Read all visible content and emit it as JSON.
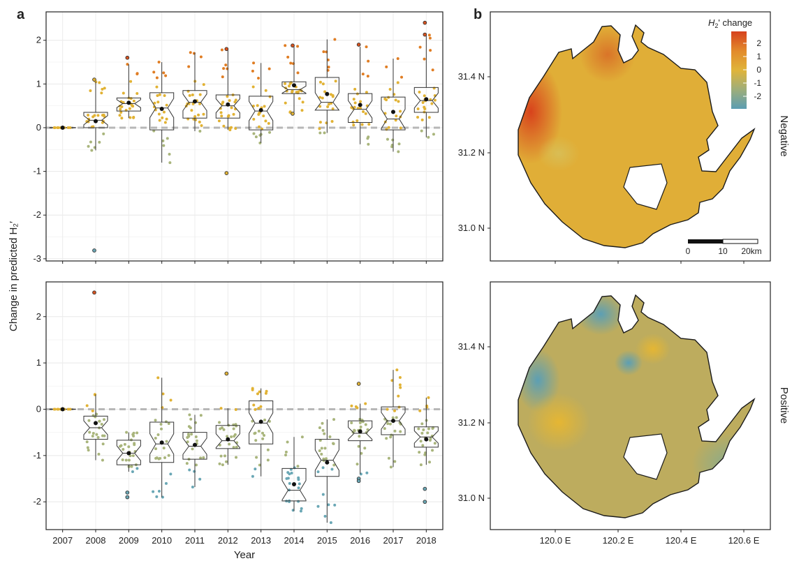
{
  "figure": {
    "panel_a_label": "a",
    "panel_b_label": "b",
    "ylabel": "Change in predicted H₂′",
    "xlabel": "Year"
  },
  "chart_data": [
    {
      "type": "box",
      "panel": "a",
      "facet": "Negative",
      "categories": [
        "2007",
        "2008",
        "2009",
        "2010",
        "2011",
        "2012",
        "2013",
        "2014",
        "2015",
        "2016",
        "2017",
        "2018"
      ],
      "ylim": [
        -3.05,
        2.65
      ],
      "yticks": [
        -3,
        -2,
        -1,
        0,
        1,
        2
      ],
      "boxes": [
        {
          "min": 0,
          "q1": 0,
          "median": 0,
          "q3": 0,
          "max": 0,
          "mean": 0
        },
        {
          "min": -0.52,
          "q1": 0.0,
          "median": 0.17,
          "q3": 0.35,
          "max": 1.05,
          "mean": 0.15
        },
        {
          "min": 0.22,
          "q1": 0.38,
          "median": 0.55,
          "q3": 0.68,
          "max": 1.45,
          "mean": 0.57
        },
        {
          "min": -0.8,
          "q1": -0.05,
          "median": 0.45,
          "q3": 0.8,
          "max": 1.5,
          "mean": 0.43
        },
        {
          "min": -0.08,
          "q1": 0.22,
          "median": 0.58,
          "q3": 0.85,
          "max": 1.72,
          "mean": 0.6
        },
        {
          "min": -0.05,
          "q1": 0.22,
          "median": 0.5,
          "q3": 0.75,
          "max": 1.78,
          "mean": 0.53
        },
        {
          "min": -0.35,
          "q1": -0.05,
          "median": 0.38,
          "q3": 0.72,
          "max": 1.48,
          "mean": 0.4
        },
        {
          "min": 0.35,
          "q1": 0.78,
          "median": 0.87,
          "q3": 1.05,
          "max": 1.88,
          "mean": 0.97
        },
        {
          "min": -0.12,
          "q1": 0.4,
          "median": 0.58,
          "q3": 1.15,
          "max": 2.02,
          "mean": 0.77
        },
        {
          "min": -0.38,
          "q1": 0.12,
          "median": 0.42,
          "q3": 0.78,
          "max": 1.85,
          "mean": 0.52
        },
        {
          "min": -0.55,
          "q1": -0.05,
          "median": 0.2,
          "q3": 0.7,
          "max": 1.58,
          "mean": 0.36
        },
        {
          "min": -0.22,
          "q1": 0.35,
          "median": 0.62,
          "q3": 0.92,
          "max": 2.12,
          "mean": 0.65
        }
      ],
      "outliers": [
        {
          "category": "2008",
          "value": -2.81
        },
        {
          "category": "2008",
          "value": 1.1
        },
        {
          "category": "2009",
          "value": 1.6
        },
        {
          "category": "2012",
          "value": -1.04
        },
        {
          "category": "2012",
          "value": 1.8
        },
        {
          "category": "2014",
          "value": 1.88
        },
        {
          "category": "2014",
          "value": 0.32
        },
        {
          "category": "2016",
          "value": 1.9
        },
        {
          "category": "2018",
          "value": 2.4
        },
        {
          "category": "2018",
          "value": 2.13
        }
      ],
      "reference_line": 0
    },
    {
      "type": "box",
      "panel": "a",
      "facet": "Positive",
      "categories": [
        "2007",
        "2008",
        "2009",
        "2010",
        "2011",
        "2012",
        "2013",
        "2014",
        "2015",
        "2016",
        "2017",
        "2018"
      ],
      "ylim": [
        -2.6,
        2.75
      ],
      "yticks": [
        -2,
        -1,
        0,
        1,
        2
      ],
      "boxes": [
        {
          "min": 0,
          "q1": 0,
          "median": 0,
          "q3": 0,
          "max": 0,
          "mean": 0
        },
        {
          "min": -1.1,
          "q1": -0.65,
          "median": -0.4,
          "q3": -0.15,
          "max": 0.32,
          "mean": -0.3
        },
        {
          "min": -1.35,
          "q1": -1.2,
          "median": -0.95,
          "q3": -0.67,
          "max": -0.5,
          "mean": -0.95
        },
        {
          "min": -1.9,
          "q1": -1.15,
          "median": -0.75,
          "q3": -0.28,
          "max": 0.68,
          "mean": -0.72
        },
        {
          "min": -1.68,
          "q1": -1.08,
          "median": -0.8,
          "q3": -0.5,
          "max": -0.12,
          "mean": -0.77
        },
        {
          "min": -1.2,
          "q1": -0.85,
          "median": -0.68,
          "q3": -0.35,
          "max": 0.02,
          "mean": -0.65
        },
        {
          "min": -1.45,
          "q1": -0.75,
          "median": -0.3,
          "q3": 0.18,
          "max": 0.45,
          "mean": -0.27
        },
        {
          "min": -2.2,
          "q1": -1.98,
          "median": -1.75,
          "q3": -1.28,
          "max": -0.6,
          "mean": -1.62
        },
        {
          "min": -2.45,
          "q1": -1.45,
          "median": -1.1,
          "q3": -0.65,
          "max": -0.22,
          "mean": -1.15
        },
        {
          "min": -1.4,
          "q1": -0.68,
          "median": -0.52,
          "q3": -0.25,
          "max": 0.12,
          "mean": -0.48
        },
        {
          "min": -1.25,
          "q1": -0.55,
          "median": -0.25,
          "q3": 0.05,
          "max": 0.85,
          "mean": -0.25
        },
        {
          "min": -1.2,
          "q1": -0.82,
          "median": -0.6,
          "q3": -0.38,
          "max": 0.25,
          "mean": -0.65
        }
      ],
      "outliers": [
        {
          "category": "2008",
          "value": 2.52
        },
        {
          "category": "2009",
          "value": -1.8
        },
        {
          "category": "2009",
          "value": -1.9
        },
        {
          "category": "2012",
          "value": 0.77
        },
        {
          "category": "2016",
          "value": 0.55
        },
        {
          "category": "2016",
          "value": -1.5
        },
        {
          "category": "2016",
          "value": -1.55
        },
        {
          "category": "2018",
          "value": -1.72
        },
        {
          "category": "2018",
          "value": -2.0
        }
      ],
      "reference_line": 0
    }
  ],
  "maps": {
    "facets": [
      "Negative",
      "Positive"
    ],
    "lat_ticks": [
      "31.4 N",
      "31.2 N",
      "31.0 N"
    ],
    "lon_ticks": [
      "120.0 E",
      "120.2 E",
      "120.4 E",
      "120.6 E"
    ],
    "legend": {
      "title_prefix": "H",
      "title_sub": "2",
      "title_suffix": "' change",
      "ticks": [
        "2",
        "1",
        "0",
        "-1",
        "-2"
      ],
      "colors": [
        "#d6411d",
        "#e59a2d",
        "#e0b43a",
        "#9eae7a",
        "#5b9db2"
      ]
    },
    "scalebar": {
      "labels": [
        "0",
        "10",
        "20km"
      ]
    },
    "colors": {
      "negative_fill": "#e0ae37",
      "positive_fill": "#bdac5e",
      "hot": "#d6461f",
      "cool": "#69a3ad"
    }
  },
  "colors": {
    "point_high": "#e07d23",
    "point_mid": "#e1b234",
    "point_low": "#a9b57c",
    "point_lowest": "#6aa7b5",
    "dash": "#b7b7b7"
  }
}
